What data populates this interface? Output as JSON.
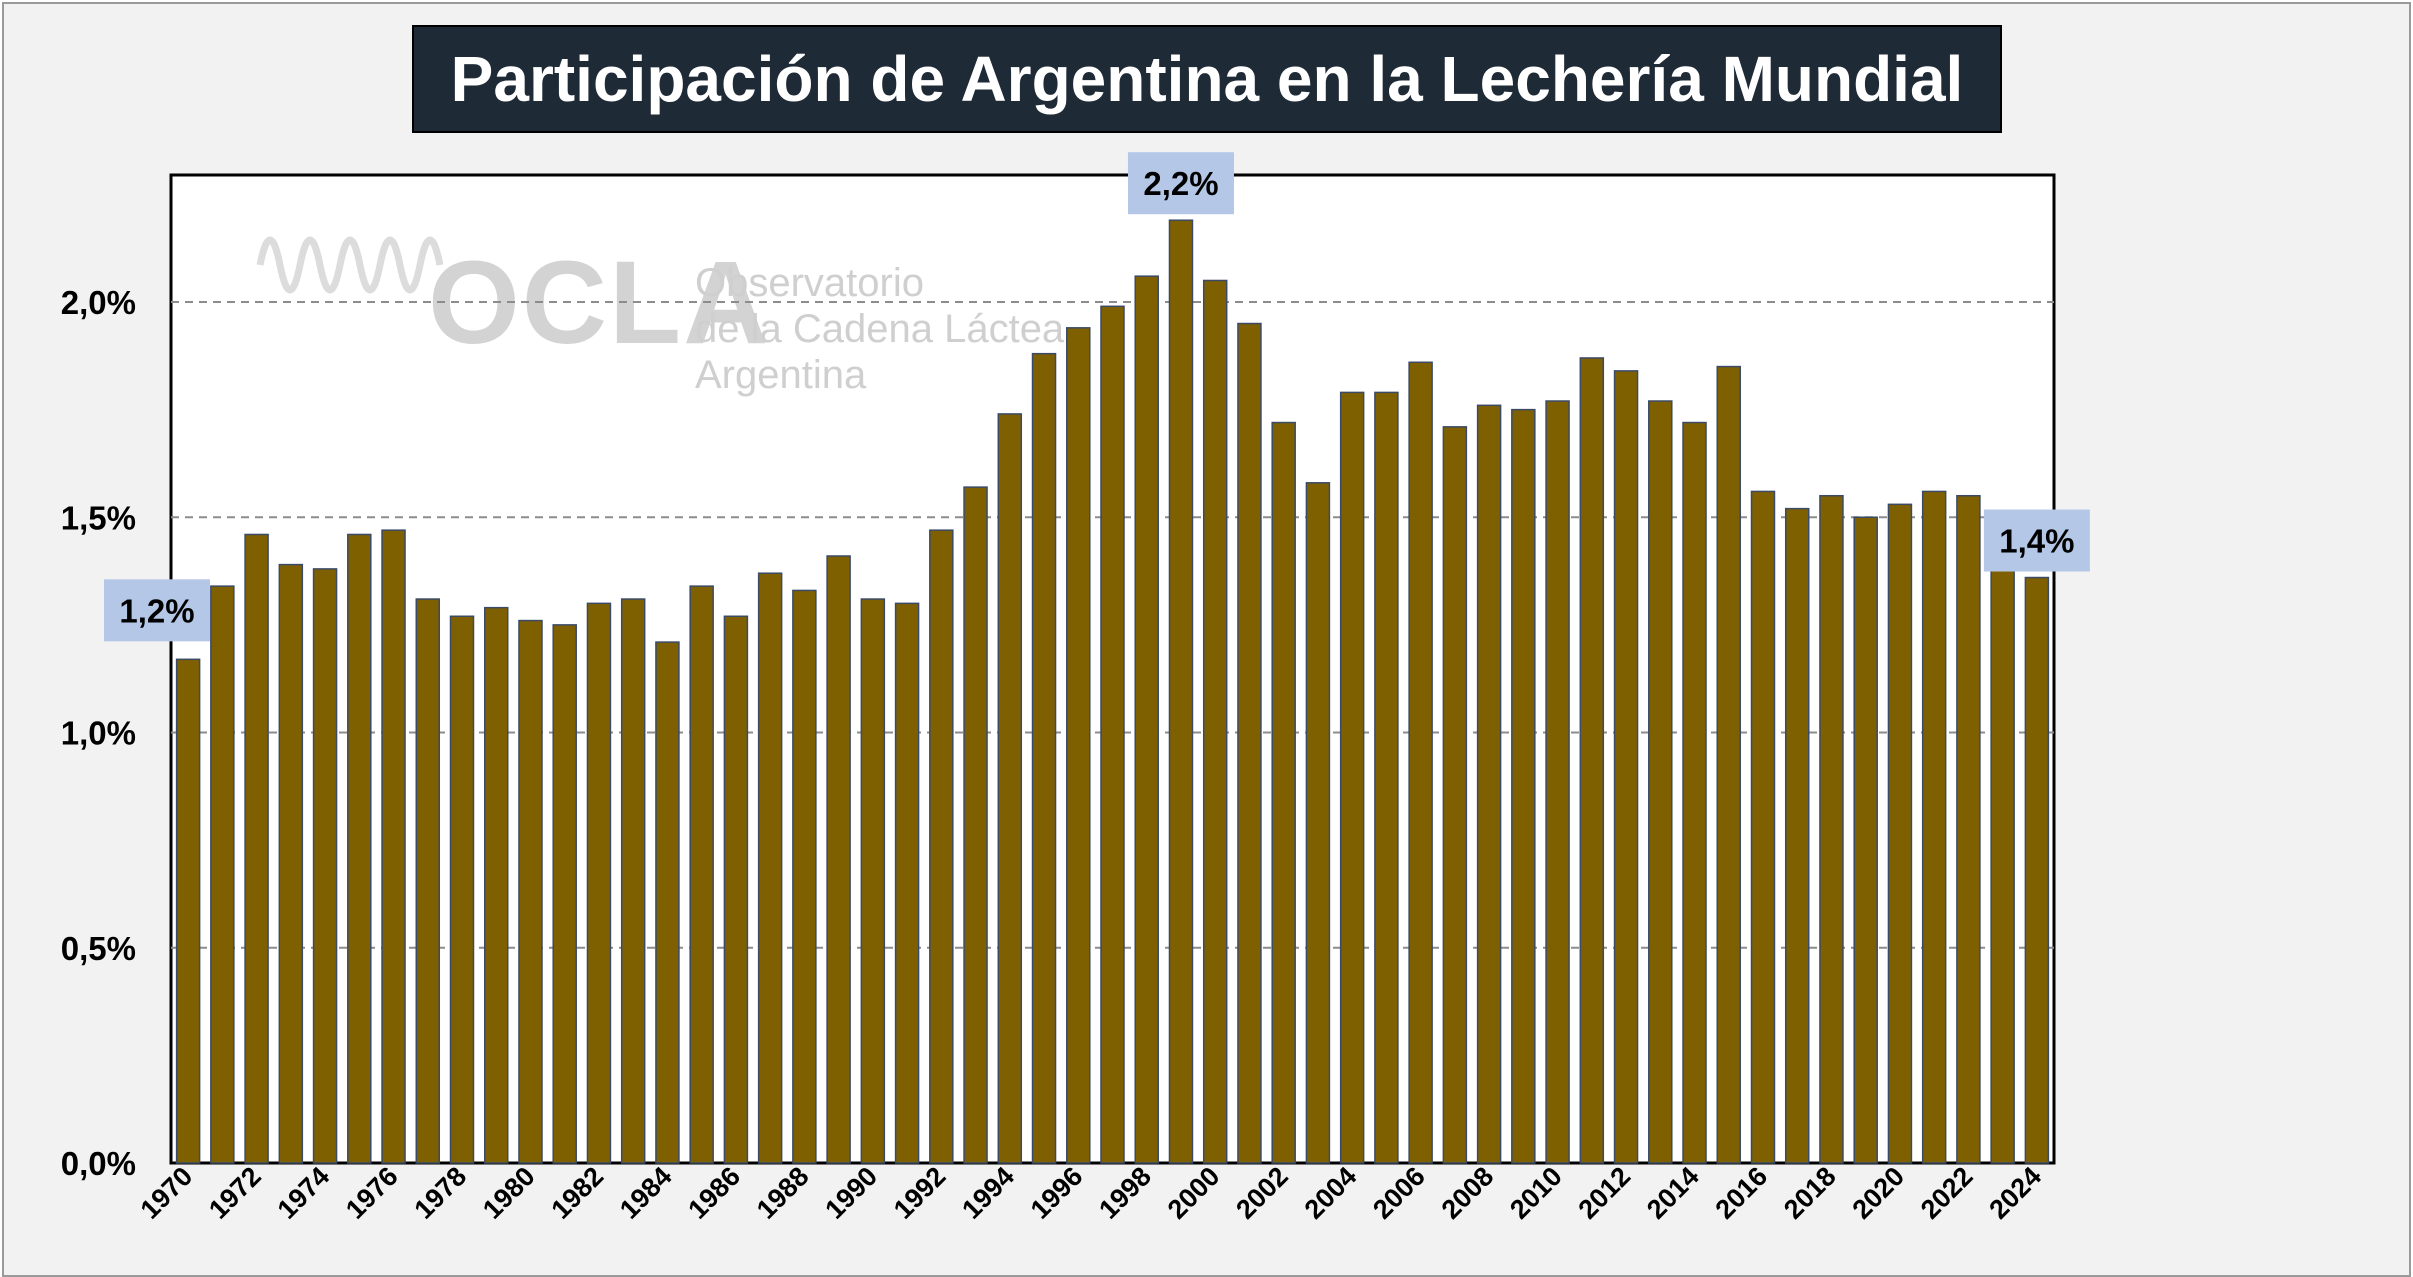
{
  "chart_data": {
    "type": "bar",
    "title": "Participación de Argentina en la Lechería Mundial",
    "xlabel": "",
    "ylabel": "",
    "ylim": [
      0,
      2.3
    ],
    "yticks": [
      "0,0%",
      "0,5%",
      "1,0%",
      "1,5%",
      "2,0%"
    ],
    "ytick_values": [
      0,
      0.5,
      1.0,
      1.5,
      2.0
    ],
    "grid": "horizontal dashed",
    "bar_color": "#7f6000",
    "categories": [
      "1970",
      "1971",
      "1972",
      "1973",
      "1974",
      "1975",
      "1976",
      "1977",
      "1978",
      "1979",
      "1980",
      "1981",
      "1982",
      "1983",
      "1984",
      "1985",
      "1986",
      "1987",
      "1988",
      "1989",
      "1990",
      "1991",
      "1992",
      "1993",
      "1994",
      "1995",
      "1996",
      "1997",
      "1998",
      "1999",
      "2000",
      "2001",
      "2002",
      "2003",
      "2004",
      "2005",
      "2006",
      "2007",
      "2008",
      "2009",
      "2010",
      "2011",
      "2012",
      "2013",
      "2014",
      "2015",
      "2016",
      "2017",
      "2018",
      "2019",
      "2020",
      "2021",
      "2022",
      "2023",
      "2024"
    ],
    "xtick_labels": [
      "1970",
      "1972",
      "1974",
      "1976",
      "1978",
      "1980",
      "1982",
      "1984",
      "1986",
      "1988",
      "1990",
      "1992",
      "1994",
      "1996",
      "1998",
      "2000",
      "2002",
      "2004",
      "2006",
      "2008",
      "2010",
      "2012",
      "2014",
      "2016",
      "2018",
      "2020",
      "2022",
      "2024"
    ],
    "values": [
      1.17,
      1.34,
      1.46,
      1.39,
      1.38,
      1.46,
      1.47,
      1.31,
      1.27,
      1.29,
      1.26,
      1.25,
      1.3,
      1.31,
      1.21,
      1.34,
      1.27,
      1.37,
      1.33,
      1.41,
      1.31,
      1.3,
      1.47,
      1.57,
      1.74,
      1.88,
      1.94,
      1.99,
      2.06,
      2.19,
      2.05,
      1.95,
      1.72,
      1.58,
      1.79,
      1.79,
      1.86,
      1.71,
      1.76,
      1.75,
      1.77,
      1.87,
      1.84,
      1.77,
      1.72,
      1.85,
      1.56,
      1.52,
      1.55,
      1.5,
      1.53,
      1.56,
      1.55,
      1.42,
      1.36
    ],
    "callouts": [
      {
        "label": "1,2%",
        "category": "1970"
      },
      {
        "label": "2,2%",
        "category": "1999"
      },
      {
        "label": "1,4%",
        "category": "2024"
      }
    ]
  },
  "watermark": {
    "logo_text": "OCLA",
    "line1": "Observatorio",
    "line2": "de la Cadena Láctea",
    "line3": "Argentina"
  }
}
